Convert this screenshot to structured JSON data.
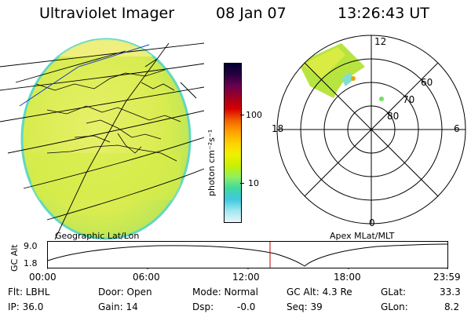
{
  "header": {
    "instrument": "Ultraviolet Imager",
    "date": "08 Jan 07",
    "time": "13:26:43 UT"
  },
  "panels": {
    "geo_label": "Geographic Lat/Lon",
    "apex_label": "Apex MLat/MLT"
  },
  "colorbar": {
    "label": "photon cm⁻²s⁻¹",
    "ticks": [
      "100",
      "10"
    ],
    "colors": [
      "#000030",
      "#2a0040",
      "#6a0050",
      "#a00020",
      "#d80000",
      "#f06000",
      "#ffa000",
      "#ffd000",
      "#f0f000",
      "#c8f000",
      "#90f060",
      "#40d8a0",
      "#40c8e0",
      "#a0e8f0",
      "#e8f4f8"
    ]
  },
  "polar": {
    "mlt": {
      "top": "12",
      "left": "18",
      "right": "6",
      "bottom": "0"
    },
    "mlat": [
      "60",
      "70",
      "80"
    ]
  },
  "altitude_plot": {
    "ylabel": "GC Alt",
    "yticks": [
      "9.0",
      "1.8"
    ],
    "xticks": [
      "00:00",
      "06:00",
      "12:00",
      "18:00",
      "23:59"
    ]
  },
  "status": {
    "row1": [
      {
        "label": "Flt: LBHL"
      },
      {
        "label": "Door: Open"
      },
      {
        "label": "Mode: Normal"
      },
      {
        "label": "GC Alt: 4.3 Re"
      },
      {
        "label": "GLat:",
        "value": "33.3"
      }
    ],
    "row2": [
      {
        "label": "IP: 36.0"
      },
      {
        "label": "Gain: 14"
      },
      {
        "label": "Dsp:",
        "value": "-0.0"
      },
      {
        "label": "Seq: 39"
      },
      {
        "label": "GLon:",
        "value": "8.2"
      }
    ]
  }
}
